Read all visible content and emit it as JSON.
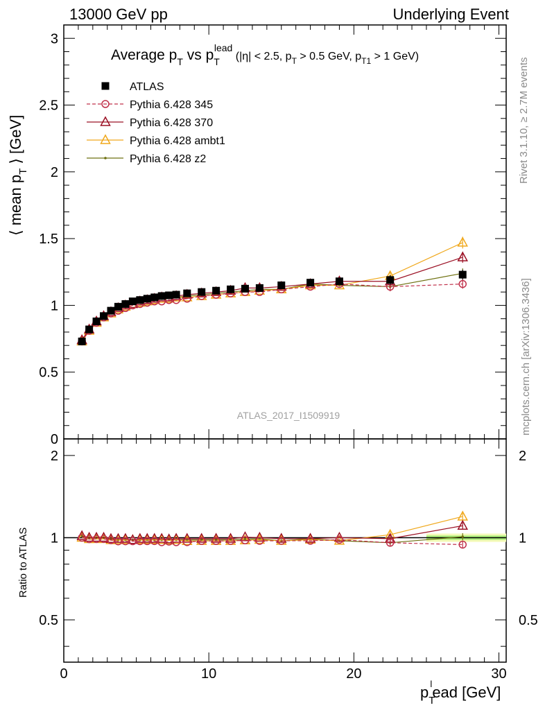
{
  "header": {
    "left": "13000 GeV pp",
    "right": "Underlying Event"
  },
  "side": {
    "rivet": "Rivet 3.1.10, ≥ 2.7M events",
    "mcplots": "mcplots.cern.ch [arXiv:1306.3436]"
  },
  "title": {
    "main": "Average p",
    "main_sub": "T",
    "mid": " vs p",
    "mid_sub": "T",
    "mid_sup": "lead",
    "cut1": " (|η| < 2.5, p",
    "cut1_sub": "T",
    "cut2": " > 0.5 GeV, p",
    "cut2_sub": "T1",
    "cut3": " > 1 GeV)"
  },
  "ylabel_top": {
    "pre": "⟨ mean p",
    "sub": "T",
    "post": " ⟩ [GeV]"
  },
  "ylabel_bottom": "Ratio to ATLAS",
  "xlabel": {
    "pre": "p",
    "sub": "T",
    "sup": "l",
    "post": "ead [GeV]"
  },
  "watermark": "ATLAS_2017_I1509919",
  "chart_data": {
    "type": "scatter",
    "x_ticks": [
      0,
      10,
      20,
      30
    ],
    "y_ticks_top": [
      "0",
      "0.5",
      "1",
      "1.5",
      "2",
      "2.5",
      "3"
    ],
    "y_ticks_bottom": [
      "0.5",
      "1",
      "2"
    ],
    "xlim": [
      0,
      30.5
    ],
    "ylim_top": [
      0,
      3.1
    ],
    "ylim_bottom": [
      0.35,
      2.3
    ],
    "ratio_scale": "log",
    "x": [
      1.25,
      1.75,
      2.25,
      2.75,
      3.25,
      3.75,
      4.25,
      4.75,
      5.25,
      5.75,
      6.25,
      6.75,
      7.25,
      7.75,
      8.5,
      9.5,
      10.5,
      11.5,
      12.5,
      13.5,
      15.0,
      17.0,
      19.0,
      22.5,
      27.5
    ],
    "series": [
      {
        "name": "ATLAS",
        "color": "#000000",
        "marker": "square",
        "values": [
          0.73,
          0.82,
          0.88,
          0.92,
          0.96,
          0.99,
          1.01,
          1.03,
          1.04,
          1.05,
          1.06,
          1.07,
          1.075,
          1.08,
          1.09,
          1.1,
          1.11,
          1.12,
          1.125,
          1.13,
          1.15,
          1.17,
          1.18,
          1.19,
          1.23
        ]
      },
      {
        "name": "Pythia 6.428 345",
        "color": "#c0304a",
        "marker": "circle",
        "dash": true,
        "values": [
          0.73,
          0.81,
          0.87,
          0.91,
          0.94,
          0.96,
          0.98,
          1.0,
          1.01,
          1.02,
          1.03,
          1.03,
          1.04,
          1.04,
          1.05,
          1.07,
          1.08,
          1.09,
          1.1,
          1.1,
          1.12,
          1.14,
          1.16,
          1.14,
          1.16
        ]
      },
      {
        "name": "Pythia 6.428 370",
        "color": "#9b1024",
        "marker": "triangle",
        "values": [
          0.74,
          0.82,
          0.88,
          0.92,
          0.95,
          0.98,
          1.0,
          1.01,
          1.03,
          1.04,
          1.05,
          1.06,
          1.06,
          1.07,
          1.08,
          1.09,
          1.1,
          1.11,
          1.13,
          1.13,
          1.14,
          1.16,
          1.18,
          1.18,
          1.36
        ]
      },
      {
        "name": "Pythia 6.428 ambt1",
        "color": "#f0a81c",
        "marker": "triangle",
        "values": [
          0.73,
          0.81,
          0.87,
          0.91,
          0.94,
          0.97,
          0.99,
          1.01,
          1.02,
          1.03,
          1.04,
          1.05,
          1.05,
          1.06,
          1.06,
          1.07,
          1.08,
          1.09,
          1.1,
          1.11,
          1.12,
          1.15,
          1.15,
          1.22,
          1.47
        ]
      },
      {
        "name": "Pythia 6.428 z2",
        "color": "#6e7010",
        "marker": "dot",
        "values": [
          0.74,
          0.82,
          0.88,
          0.92,
          0.95,
          0.97,
          0.99,
          1.01,
          1.02,
          1.03,
          1.04,
          1.05,
          1.06,
          1.06,
          1.07,
          1.08,
          1.09,
          1.1,
          1.11,
          1.12,
          1.12,
          1.16,
          1.15,
          1.14,
          1.24
        ]
      }
    ],
    "legend_position": "top-left"
  }
}
